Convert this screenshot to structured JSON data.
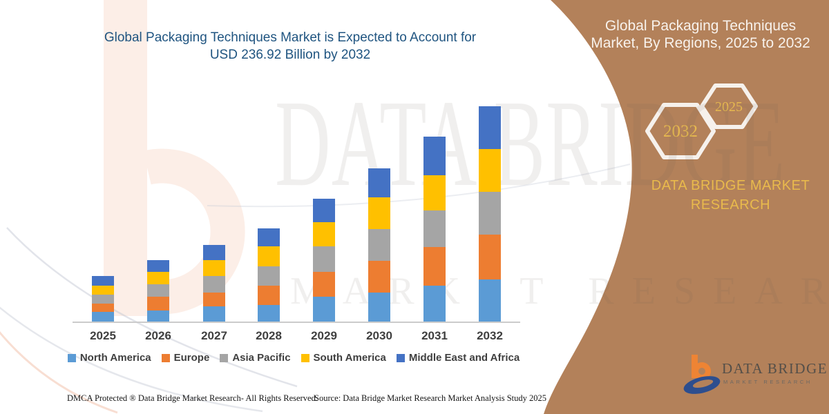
{
  "page": {
    "title_line1": "Global Packaging Techniques Market is Expected to Account for",
    "title_line2": "USD 236.92 Billion by 2032"
  },
  "side_panel": {
    "title_line1": "Global Packaging Techniques",
    "title_line2": "Market, By Regions, 2025 to 2032",
    "hexagon_year_left": "2032",
    "hexagon_year_right": "2025",
    "brand_line1": "DATA BRIDGE MARKET",
    "brand_line2": "RESEARCH",
    "panel_color": "#b3815a",
    "gold_color": "#e9ba4c"
  },
  "logo": {
    "title": "DATA BRIDGE",
    "subtitle": "MARKET RESEARCH"
  },
  "watermark": {
    "line1": "DATA BRIDGE",
    "line2": "MARKET RESEARCH"
  },
  "footer": {
    "dmca": "DMCA Protected ® Data Bridge Market Research-  All Rights Reserved.",
    "source": "Source: Data Bridge Market Research  Market Analysis Study 2025"
  },
  "chart_data": {
    "type": "bar",
    "stacked": true,
    "title": "Global Packaging Techniques Market is Expected to Account for USD 236.92 Billion by 2032",
    "unit": "USD Billion",
    "grid": false,
    "legend_position": "bottom",
    "categories": [
      "2025",
      "2026",
      "2027",
      "2028",
      "2029",
      "2030",
      "2031",
      "2032"
    ],
    "series": [
      {
        "name": "North America",
        "color": "#5b9bd5",
        "values": [
          10.3,
          12.2,
          16.4,
          17.9,
          27.4,
          31.9,
          39.6,
          46.4
        ]
      },
      {
        "name": "Europe",
        "color": "#ed7d31",
        "values": [
          9.5,
          15.2,
          15.6,
          21.3,
          27.4,
          35.0,
          42.6,
          49.1
        ]
      },
      {
        "name": "Asia Pacific",
        "color": "#a5a5a5",
        "values": [
          9.5,
          13.3,
          18.3,
          21.3,
          27.8,
          34.6,
          40.3,
          47.2
        ]
      },
      {
        "name": "South America",
        "color": "#ffc000",
        "values": [
          10.6,
          13.7,
          17.1,
          22.1,
          26.6,
          35.0,
          38.8,
          47.2
        ]
      },
      {
        "name": "Middle East and Africa",
        "color": "#4472c4",
        "values": [
          10.6,
          12.9,
          17.1,
          19.8,
          25.9,
          32.3,
          42.6,
          47.2
        ]
      }
    ],
    "totals_by_year": [
      50.5,
      67.3,
      84.5,
      102.4,
      135.1,
      168.8,
      203.9,
      237.1
    ],
    "ylim": [
      0,
      240
    ]
  }
}
